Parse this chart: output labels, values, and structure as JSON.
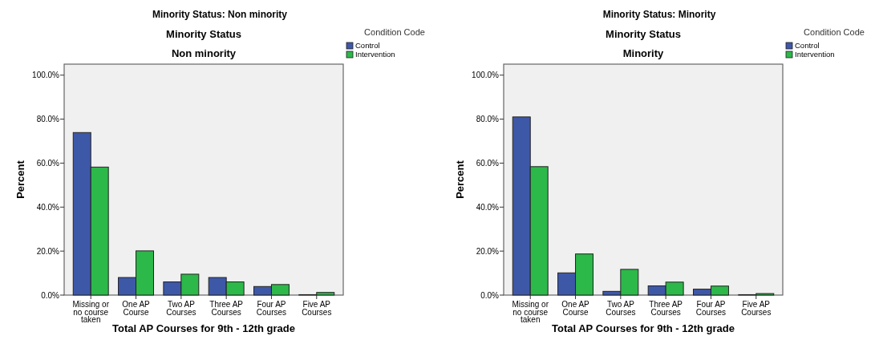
{
  "chart_data": [
    {
      "type": "bar",
      "title": "Minority Status: Non minority",
      "subtitle": "Minority Status",
      "annotations": [
        "Non minority"
      ],
      "xlabel": "Total AP Courses for 9th - 12th grade",
      "ylabel": "Percent",
      "legend_title": "Condition Code",
      "legend": "top right",
      "categories": [
        "Missing or no course taken",
        "One AP Course",
        "Two AP Courses",
        "Three AP Courses",
        "Four AP Courses",
        "Five AP Courses"
      ],
      "ylim": [
        0,
        105
      ],
      "yticks": [
        {
          "value": 0,
          "label": "0.0%"
        },
        {
          "value": 20,
          "label": "20.0%"
        },
        {
          "value": 40,
          "label": "40.0%"
        },
        {
          "value": 60,
          "label": "60.0%"
        },
        {
          "value": 80,
          "label": "80.0%"
        },
        {
          "value": 100,
          "label": "100.0%"
        }
      ],
      "series": [
        {
          "name": "Control",
          "color": "#3e58a8",
          "values": [
            73.9,
            8.0,
            6.0,
            8.0,
            3.9,
            0.2
          ]
        },
        {
          "name": "Intervention",
          "color": "#2db84a",
          "values": [
            58.2,
            20.1,
            9.5,
            6.0,
            4.8,
            1.2
          ]
        }
      ]
    },
    {
      "type": "bar",
      "title": "Minority Status: Minority",
      "subtitle": "Minority Status",
      "annotations": [
        "Minority"
      ],
      "xlabel": "Total AP Courses for 9th - 12th grade",
      "ylabel": "Percent",
      "legend_title": "Condition Code",
      "legend": "top right",
      "categories": [
        "Missing or no course taken",
        "One AP Course",
        "Two AP Courses",
        "Three AP Courses",
        "Four AP Courses",
        "Five AP Courses"
      ],
      "ylim": [
        0,
        105
      ],
      "yticks": [
        {
          "value": 0,
          "label": "0.0%"
        },
        {
          "value": 20,
          "label": "20.0%"
        },
        {
          "value": 40,
          "label": "40.0%"
        },
        {
          "value": 60,
          "label": "60.0%"
        },
        {
          "value": 80,
          "label": "80.0%"
        },
        {
          "value": 100,
          "label": "100.0%"
        }
      ],
      "series": [
        {
          "name": "Control",
          "color": "#3e58a8",
          "values": [
            81.0,
            10.1,
            1.7,
            4.2,
            2.7,
            0.2
          ]
        },
        {
          "name": "Intervention",
          "color": "#2db84a",
          "values": [
            58.4,
            18.7,
            11.7,
            5.9,
            4.1,
            0.7
          ]
        }
      ]
    }
  ]
}
